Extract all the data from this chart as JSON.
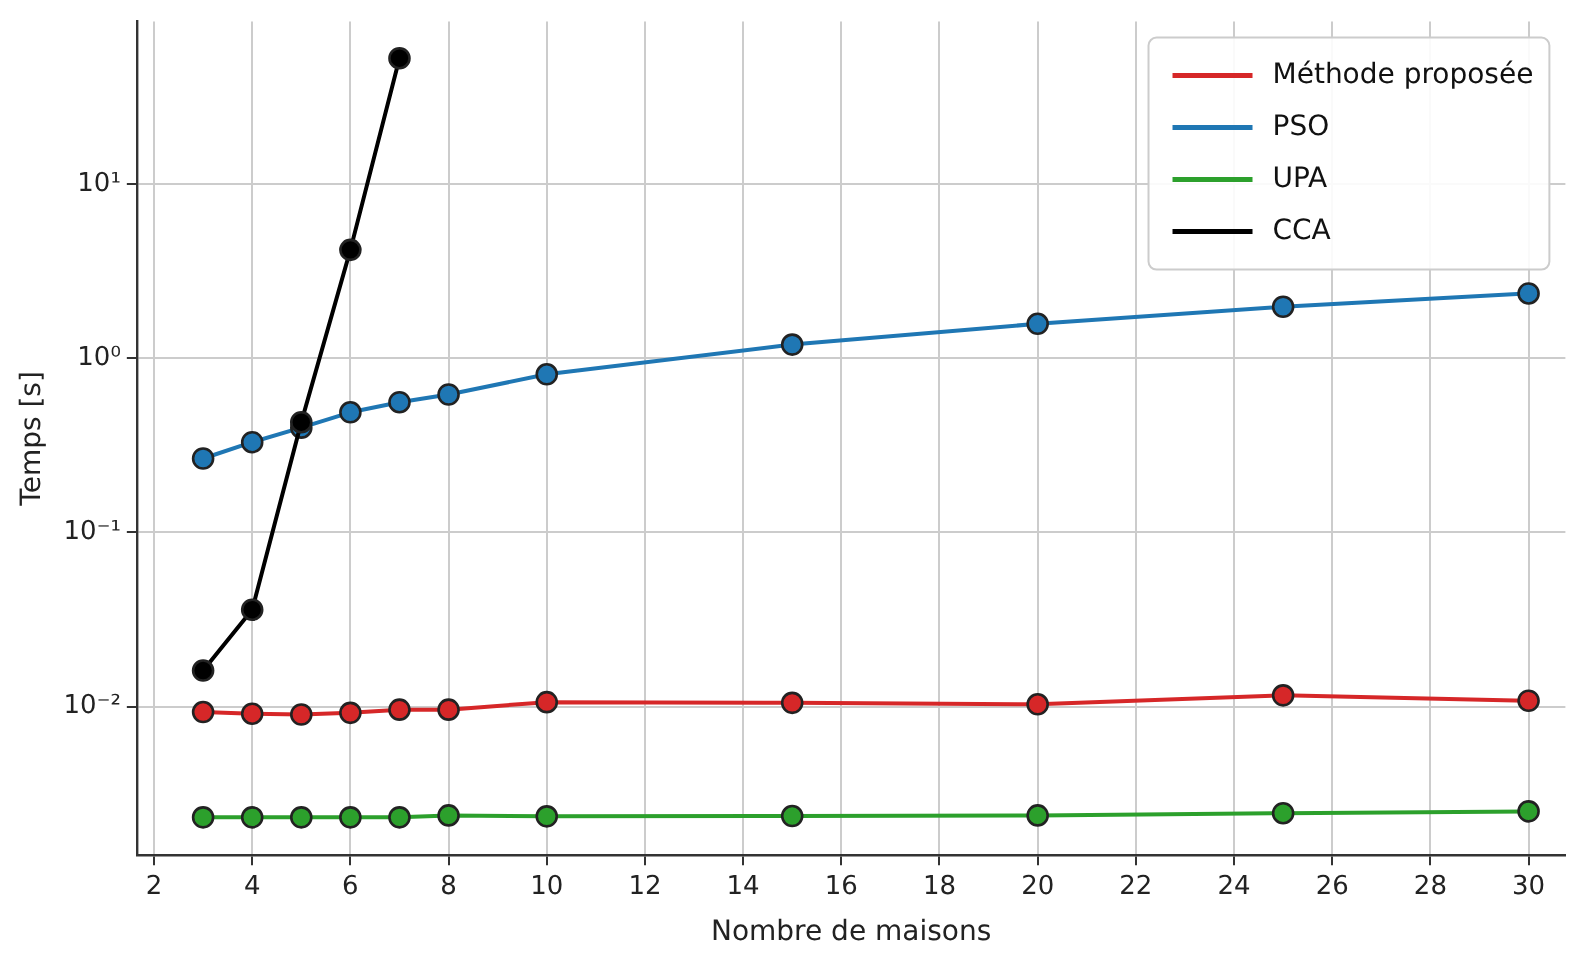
{
  "chart_data": {
    "type": "line",
    "xlabel": "Nombre de maisons",
    "ylabel": "Temps [s]",
    "log": "y",
    "grid": true,
    "legend": "top right",
    "marker": "circle",
    "line_style": "solid",
    "xlim": [
      1.65,
      30.75
    ],
    "xticks": [
      2,
      4,
      6,
      8,
      10,
      12,
      14,
      16,
      18,
      20,
      22,
      24,
      26,
      28,
      30
    ],
    "ylim": [
      0.0014,
      86
    ],
    "yticks": [
      {
        "value": 0.01,
        "label": "10⁻²"
      },
      {
        "value": 0.1,
        "label": "10⁻¹"
      },
      {
        "value": 1,
        "label": "10⁰"
      },
      {
        "value": 10,
        "label": "10¹"
      }
    ],
    "x": [
      3,
      4,
      5,
      6,
      7,
      8,
      10,
      15,
      20,
      25,
      30
    ],
    "series": [
      {
        "name": "Méthode proposée",
        "color": "#d62728",
        "values": [
          0.0093,
          0.0091,
          0.009,
          0.0092,
          0.0096,
          0.0096,
          0.0106,
          0.0105,
          0.0103,
          0.0116,
          0.0108
        ]
      },
      {
        "name": "PSO",
        "color": "#1f77b4",
        "values": [
          0.266,
          0.33,
          0.4,
          0.49,
          0.56,
          0.62,
          0.81,
          1.2,
          1.58,
          1.98,
          2.36
        ]
      },
      {
        "name": "UPA",
        "color": "#2ca02c",
        "values": [
          0.00231,
          0.00231,
          0.00231,
          0.00231,
          0.00231,
          0.00237,
          0.00234,
          0.00235,
          0.00237,
          0.00244,
          0.0025
        ]
      },
      {
        "name": "CCA",
        "color": "#000000",
        "x": [
          3,
          4,
          5,
          6,
          7
        ],
        "values": [
          0.0161,
          0.036,
          0.43,
          4.2,
          53
        ]
      }
    ]
  }
}
